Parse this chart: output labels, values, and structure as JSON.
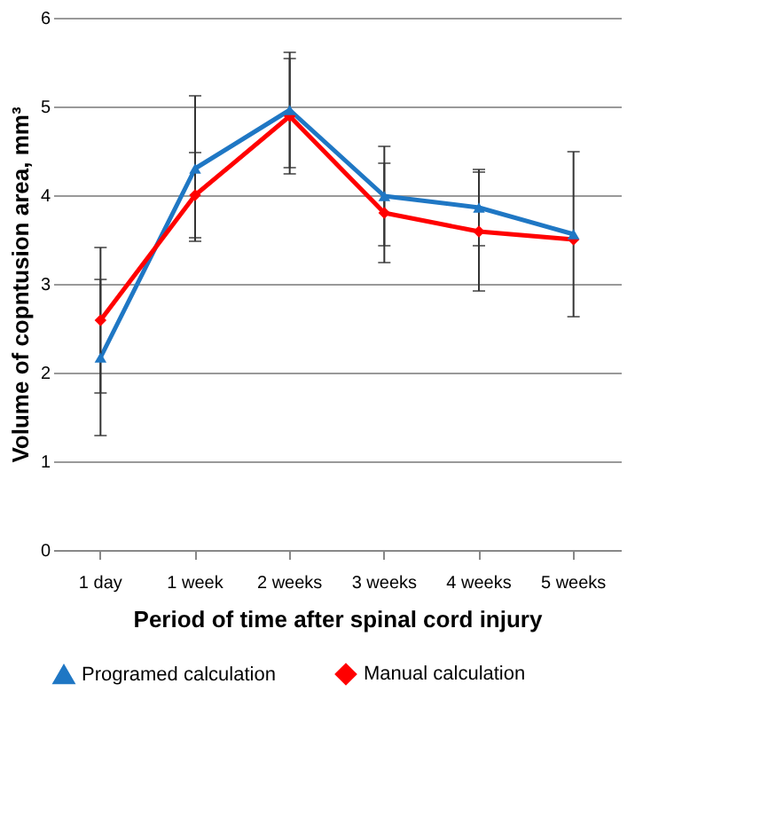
{
  "chart_data": {
    "type": "line",
    "xlabel": "Period of time after spinal cord injury",
    "ylabel": "Volume of copntusion area, mm³",
    "categories": [
      "1 day",
      "1 week",
      "2 weeks",
      "3 weeks",
      "4 weeks",
      "5 weeks"
    ],
    "series": [
      {
        "name": "Programed calculation",
        "color": "#1f77c4",
        "marker": "triangle",
        "values": [
          2.17,
          4.3,
          4.96,
          3.99,
          3.86,
          3.56
        ],
        "errors": [
          0.88,
          0.82,
          0.65,
          0.56,
          0.43,
          0.93
        ]
      },
      {
        "name": "Manual calculation",
        "color": "#ff0000",
        "marker": "diamond",
        "values": [
          2.59,
          4.0,
          4.89,
          3.8,
          3.59,
          3.5
        ],
        "errors": [
          0.82,
          0.48,
          0.65,
          0.56,
          0.67,
          null
        ]
      }
    ],
    "ylim": [
      0,
      6
    ],
    "yticks": [
      0,
      1,
      2,
      3,
      4,
      5,
      6
    ],
    "grid": "y",
    "legend": "bottom"
  }
}
